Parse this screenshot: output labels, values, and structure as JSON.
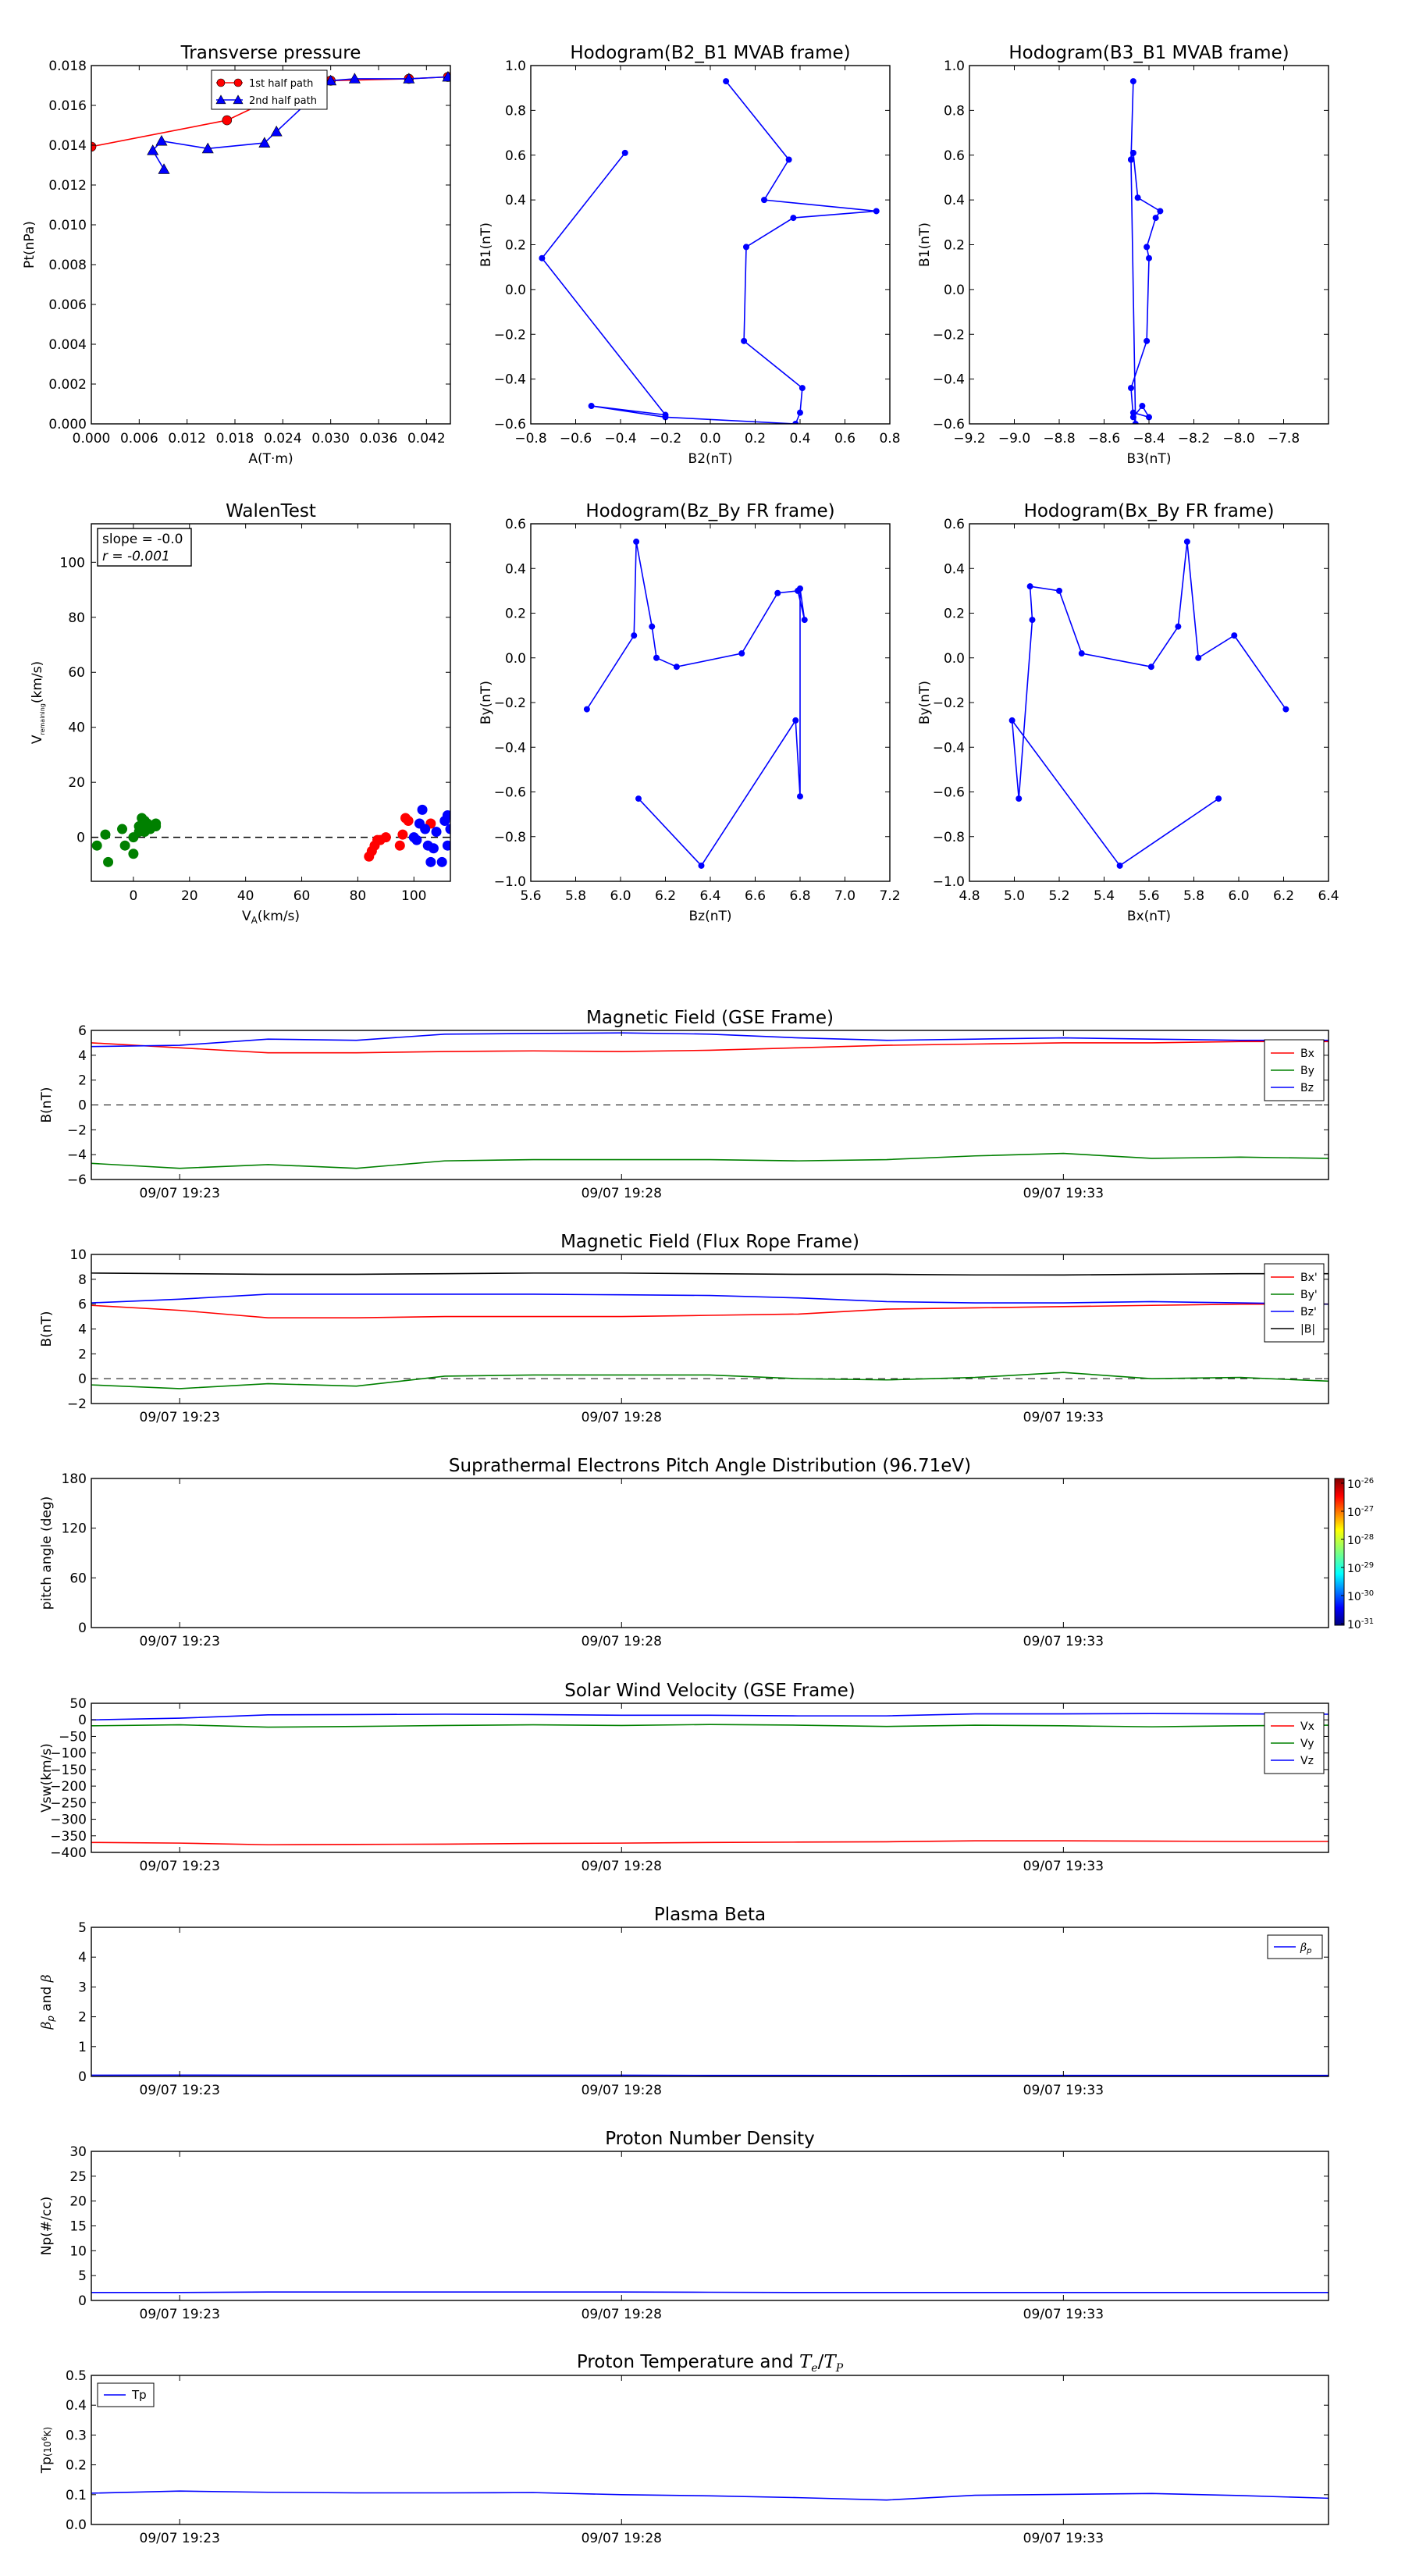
{
  "chart_data": [
    {
      "id": "tp",
      "type": "scatter",
      "title": "Transverse pressure",
      "xlabel": "A(T·m)",
      "ylabel": "Pt(nPa)",
      "xlim": [
        0,
        0.045
      ],
      "ylim": [
        0,
        0.019
      ],
      "xticks": [
        "0.000",
        "0.006",
        "0.012",
        "0.018",
        "0.024",
        "0.030",
        "0.036",
        "0.042"
      ],
      "yticks": [
        "0.000",
        "0.002",
        "0.004",
        "0.006",
        "0.008",
        "0.010",
        "0.012",
        "0.014",
        "0.016",
        "0.018"
      ],
      "legend": {
        "position": "top-right",
        "entries": [
          "1st half path",
          "2nd half path"
        ]
      },
      "series": [
        {
          "name": "1st half path",
          "color": "#ff0000",
          "marker": "circle",
          "x": [
            0.0,
            0.017,
            0.0225,
            0.03,
            0.0398,
            0.0447
          ],
          "y": [
            0.0147,
            0.0161,
            0.0172,
            0.0182,
            0.0183,
            0.0184
          ]
        },
        {
          "name": "2nd half path",
          "color": "#0000ff",
          "marker": "triangle",
          "x": [
            0.0447,
            0.0398,
            0.033,
            0.03,
            0.0232,
            0.0217,
            0.0146,
            0.0088,
            0.0077,
            0.0091
          ],
          "y": [
            0.0184,
            0.0183,
            0.0183,
            0.0182,
            0.0155,
            0.0149,
            0.0146,
            0.015,
            0.0145,
            0.0135
          ]
        }
      ]
    },
    {
      "id": "h1",
      "type": "line",
      "title": "Hodogram(B2_B1 MVAB frame)",
      "xlabel": "B2(nT)",
      "ylabel": "B1(nT)",
      "xlim": [
        -0.8,
        0.8
      ],
      "ylim": [
        -0.6,
        1.0
      ],
      "xticks": [
        "−0.8",
        "−0.6",
        "−0.4",
        "−0.2",
        "0.0",
        "0.2",
        "0.4",
        "0.6",
        "0.8"
      ],
      "yticks": [
        "−0.6",
        "−0.4",
        "−0.2",
        "0.0",
        "0.2",
        "0.4",
        "0.6",
        "0.8",
        "1.0"
      ],
      "series": [
        {
          "color": "#0000ff",
          "marker": "dot",
          "x": [
            -0.38,
            -0.75,
            -0.2,
            -0.53,
            -0.2,
            0.38,
            0.4,
            0.41,
            0.15,
            0.16,
            0.37,
            0.74,
            0.24,
            0.35,
            0.07
          ],
          "y": [
            0.61,
            0.14,
            -0.56,
            -0.52,
            -0.57,
            -0.6,
            -0.55,
            -0.44,
            -0.23,
            0.19,
            0.32,
            0.35,
            0.4,
            0.58,
            0.93
          ]
        }
      ]
    },
    {
      "id": "h2",
      "type": "line",
      "title": "Hodogram(B3_B1 MVAB frame)",
      "xlabel": "B3(nT)",
      "ylabel": "B1(nT)",
      "xlim": [
        -9.2,
        -7.6
      ],
      "ylim": [
        -0.6,
        1.0
      ],
      "xticks": [
        "−9.2",
        "−9.0",
        "−8.8",
        "−8.6",
        "−8.4",
        "−8.2",
        "−8.0",
        "−7.8"
      ],
      "yticks": [
        "−0.6",
        "−0.4",
        "−0.2",
        "0.0",
        "0.2",
        "0.4",
        "0.6",
        "0.8",
        "1.0"
      ],
      "series": [
        {
          "color": "#0000ff",
          "marker": "dot",
          "x": [
            -8.47,
            -8.48,
            -8.47,
            -8.45,
            -8.35,
            -8.37,
            -8.41,
            -8.4,
            -8.41,
            -8.48,
            -8.47,
            -8.43,
            -8.4,
            -8.47,
            -8.46,
            -8.48
          ],
          "y": [
            0.93,
            0.58,
            0.61,
            0.41,
            0.35,
            0.32,
            0.19,
            0.14,
            -0.23,
            -0.44,
            -0.57,
            -0.52,
            -0.57,
            -0.55,
            -0.6,
            0.58
          ]
        }
      ]
    },
    {
      "id": "walen",
      "type": "scatter",
      "title": "WalenTest",
      "xlabel": "V",
      "xlabel_sub": "A",
      "xlabel_unit": "(km/s)",
      "ylabel": "V",
      "ylabel_sub": "remaining",
      "ylabel_unit": "(km/s)",
      "xlim": [
        -15,
        113
      ],
      "ylim": [
        -16,
        114
      ],
      "xticks": [
        0,
        20,
        40,
        60,
        80,
        100
      ],
      "yticks": [
        0,
        20,
        40,
        60,
        80,
        100
      ],
      "annotation": [
        "slope = -0.0",
        "r = -0.001"
      ],
      "fit_line": {
        "slope": -0.0,
        "intercept": 0
      },
      "series": [
        {
          "color": "#008000",
          "x": [
            -13,
            -10,
            -9,
            -4,
            -3,
            0,
            0,
            2,
            2,
            3,
            4,
            4,
            5,
            6,
            8,
            8
          ],
          "y": [
            -3,
            1,
            -9,
            3,
            -3,
            0,
            -6,
            2,
            4,
            7,
            6,
            2,
            5,
            3,
            4,
            5
          ]
        },
        {
          "color": "#ff0000",
          "x": [
            84,
            85,
            86,
            87,
            88,
            90,
            95,
            96,
            97,
            98,
            106
          ],
          "y": [
            -7,
            -5,
            -3,
            -1,
            -1,
            0,
            -3,
            1,
            7,
            6,
            5
          ]
        },
        {
          "color": "#0000ff",
          "x": [
            100,
            101,
            102,
            103,
            104,
            105,
            106,
            107,
            108,
            110,
            111,
            112,
            112,
            113
          ],
          "y": [
            0,
            -1,
            5,
            10,
            3,
            -3,
            -9,
            -4,
            2,
            -9,
            6,
            -3,
            8,
            3
          ]
        }
      ]
    },
    {
      "id": "h3",
      "type": "line",
      "title": "Hodogram(Bz_By FR frame)",
      "xlabel": "Bz(nT)",
      "ylabel": "By(nT)",
      "xlim": [
        5.6,
        7.2
      ],
      "ylim": [
        -1.0,
        0.6
      ],
      "xticks": [
        "5.6",
        "5.8",
        "6.0",
        "6.2",
        "6.4",
        "6.6",
        "6.8",
        "7.0",
        "7.2"
      ],
      "yticks": [
        "−1.0",
        "−0.8",
        "−0.6",
        "−0.4",
        "−0.2",
        "0.0",
        "0.2",
        "0.4",
        "0.6"
      ],
      "series": [
        {
          "color": "#0000ff",
          "marker": "dot",
          "x": [
            6.08,
            6.36,
            6.78,
            6.8,
            6.8,
            6.82,
            6.79,
            6.7,
            6.54,
            6.25,
            6.16,
            6.14,
            6.07,
            6.06,
            5.85
          ],
          "y": [
            -0.63,
            -0.93,
            -0.28,
            -0.62,
            0.31,
            0.17,
            0.3,
            0.29,
            0.02,
            -0.04,
            0.0,
            0.14,
            0.52,
            0.1,
            -0.23
          ]
        }
      ]
    },
    {
      "id": "h4",
      "type": "line",
      "title": "Hodogram(Bx_By FR frame)",
      "xlabel": "Bx(nT)",
      "ylabel": "By(nT)",
      "xlim": [
        4.8,
        6.4
      ],
      "ylim": [
        -1.0,
        0.6
      ],
      "xticks": [
        "4.8",
        "5.0",
        "5.2",
        "5.4",
        "5.6",
        "5.8",
        "6.0",
        "6.2",
        "6.4"
      ],
      "yticks": [
        "−1.0",
        "−0.8",
        "−0.6",
        "−0.4",
        "−0.2",
        "0.0",
        "0.2",
        "0.4",
        "0.6"
      ],
      "series": [
        {
          "color": "#0000ff",
          "marker": "dot",
          "x": [
            5.91,
            5.47,
            4.99,
            5.02,
            5.08,
            5.07,
            5.2,
            5.3,
            5.61,
            5.73,
            5.77,
            5.82,
            5.98,
            6.21
          ],
          "y": [
            -0.63,
            -0.93,
            -0.28,
            -0.63,
            0.17,
            0.32,
            0.3,
            0.02,
            -0.04,
            0.14,
            0.52,
            0.0,
            0.1,
            -0.23
          ]
        }
      ]
    },
    {
      "id": "ts1",
      "type": "line",
      "title": "Magnetic Field (GSE Frame)",
      "ylabel": "B(nT)",
      "ylim": [
        -6,
        6
      ],
      "yticks": [
        "−6",
        "−4",
        "−2",
        "0",
        "2",
        "4",
        "6"
      ],
      "x": [
        0,
        1,
        2,
        3,
        4,
        5,
        6,
        7,
        8,
        9,
        10,
        11,
        12,
        13,
        14
      ],
      "xticks": [
        "09/07 19:23",
        "09/07 19:28",
        "09/07 19:33"
      ],
      "xtick_pos": [
        1,
        6,
        11
      ],
      "zero_line": true,
      "legend": {
        "position": "right"
      },
      "series": [
        {
          "name": "Bx",
          "color": "#ff0000",
          "values": [
            5.0,
            4.6,
            4.2,
            4.2,
            4.3,
            4.35,
            4.3,
            4.4,
            4.6,
            4.8,
            4.9,
            5.0,
            5.0,
            5.1,
            5.1
          ]
        },
        {
          "name": "By",
          "color": "#008000",
          "values": [
            -4.7,
            -5.1,
            -4.8,
            -5.1,
            -4.5,
            -4.4,
            -4.4,
            -4.4,
            -4.5,
            -4.4,
            -4.1,
            -3.9,
            -4.3,
            -4.2,
            -4.3
          ]
        },
        {
          "name": "Bz",
          "color": "#0000ff",
          "values": [
            4.7,
            4.8,
            5.3,
            5.2,
            5.7,
            5.75,
            5.8,
            5.7,
            5.4,
            5.2,
            5.3,
            5.4,
            5.3,
            5.2,
            5.2
          ]
        }
      ]
    },
    {
      "id": "ts2",
      "type": "line",
      "title": "Magnetic Field (Flux Rope Frame)",
      "ylabel": "B(nT)",
      "ylim": [
        -2,
        10
      ],
      "yticks": [
        "−2",
        "0",
        "2",
        "4",
        "6",
        "8",
        "10"
      ],
      "x": [
        0,
        1,
        2,
        3,
        4,
        5,
        6,
        7,
        8,
        9,
        10,
        11,
        12,
        13,
        14
      ],
      "xticks": [
        "09/07 19:23",
        "09/07 19:28",
        "09/07 19:33"
      ],
      "xtick_pos": [
        1,
        6,
        11
      ],
      "zero_line": true,
      "legend": {
        "position": "right"
      },
      "series": [
        {
          "name": "Bx'",
          "color": "#ff0000",
          "values": [
            5.9,
            5.5,
            4.9,
            4.9,
            5.0,
            5.0,
            5.0,
            5.1,
            5.2,
            5.6,
            5.7,
            5.8,
            5.9,
            6.0,
            6.0
          ]
        },
        {
          "name": "By'",
          "color": "#008000",
          "values": [
            -0.5,
            -0.8,
            -0.4,
            -0.6,
            0.2,
            0.3,
            0.3,
            0.3,
            0.0,
            -0.1,
            0.1,
            0.5,
            0.0,
            0.1,
            -0.2
          ]
        },
        {
          "name": "Bz'",
          "color": "#0000ff",
          "values": [
            6.1,
            6.4,
            6.8,
            6.8,
            6.8,
            6.8,
            6.75,
            6.7,
            6.5,
            6.2,
            6.1,
            6.1,
            6.2,
            6.1,
            6.0
          ]
        },
        {
          "name": "|B|",
          "color": "#000000",
          "values": [
            8.5,
            8.45,
            8.4,
            8.4,
            8.45,
            8.5,
            8.5,
            8.45,
            8.4,
            8.4,
            8.35,
            8.35,
            8.4,
            8.45,
            8.45
          ]
        }
      ]
    },
    {
      "id": "ts3",
      "type": "heatmap",
      "title": "Suprathermal Electrons Pitch Angle Distribution (96.71eV)",
      "ylabel": "pitch angle (deg)",
      "ylim": [
        0,
        180
      ],
      "yticks": [
        "0",
        "60",
        "120",
        "180"
      ],
      "x": [
        0,
        14
      ],
      "xticks": [
        "09/07 19:23",
        "09/07 19:28",
        "09/07 19:33"
      ],
      "xtick_pos": [
        1,
        6,
        11
      ],
      "colorbar": {
        "ticks": [
          {
            "base": "10",
            "exp": "-26"
          },
          {
            "base": "10",
            "exp": "-27"
          },
          {
            "base": "10",
            "exp": "-28"
          },
          {
            "base": "10",
            "exp": "-29"
          },
          {
            "base": "10",
            "exp": "-30"
          },
          {
            "base": "10",
            "exp": "-31"
          }
        ]
      }
    },
    {
      "id": "ts4",
      "type": "line",
      "title": "Solar Wind Velocity (GSE Frame)",
      "ylabel": "Vsw(km/s)",
      "ylim": [
        -400,
        50
      ],
      "yticks": [
        "−400",
        "−350",
        "−300",
        "−250",
        "−200",
        "−150",
        "−100",
        "−50",
        "0",
        "50"
      ],
      "x": [
        0,
        1,
        2,
        3,
        4,
        5,
        6,
        7,
        8,
        9,
        10,
        11,
        12,
        13,
        14
      ],
      "xticks": [
        "09/07 19:23",
        "09/07 19:28",
        "09/07 19:33"
      ],
      "xtick_pos": [
        1,
        6,
        11
      ],
      "legend": {
        "position": "right"
      },
      "series": [
        {
          "name": "Vx",
          "color": "#ff0000",
          "values": [
            -370,
            -372,
            -377,
            -376,
            -375,
            -373,
            -372,
            -370,
            -369,
            -368,
            -365,
            -365,
            -366,
            -367,
            -367
          ]
        },
        {
          "name": "Vy",
          "color": "#008000",
          "values": [
            -18,
            -15,
            -22,
            -20,
            -17,
            -15,
            -17,
            -14,
            -16,
            -20,
            -16,
            -18,
            -21,
            -18,
            -16
          ]
        },
        {
          "name": "Vz",
          "color": "#0000ff",
          "values": [
            0,
            5,
            15,
            16,
            17,
            16,
            14,
            14,
            12,
            12,
            18,
            18,
            19,
            18,
            17
          ]
        }
      ]
    },
    {
      "id": "ts5",
      "type": "line",
      "title": "Plasma Beta",
      "ylabel_base": "β",
      "ylabel_sub": "p",
      "ylabel_mid": " and ",
      "ylabel_end": "β",
      "ylim": [
        0,
        5
      ],
      "yticks": [
        "0",
        "1",
        "2",
        "3",
        "4",
        "5"
      ],
      "x": [
        0,
        1,
        2,
        3,
        4,
        5,
        6,
        7,
        8,
        9,
        10,
        11,
        12,
        13,
        14
      ],
      "xticks": [
        "09/07 19:23",
        "09/07 19:28",
        "09/07 19:33"
      ],
      "xtick_pos": [
        1,
        6,
        11
      ],
      "legend": {
        "position": "top-right",
        "label_base": "β",
        "label_sub": "p"
      },
      "series": [
        {
          "name": "βp",
          "color": "#0000ff",
          "values": [
            0.04,
            0.045,
            0.04,
            0.04,
            0.04,
            0.04,
            0.04,
            0.035,
            0.035,
            0.03,
            0.035,
            0.035,
            0.035,
            0.035,
            0.035
          ]
        }
      ]
    },
    {
      "id": "ts6",
      "type": "line",
      "title": "Proton Number Density",
      "ylabel": "Np(#/cc)",
      "ylim": [
        0,
        30
      ],
      "yticks": [
        "0",
        "5",
        "10",
        "15",
        "20",
        "25",
        "30"
      ],
      "x": [
        0,
        1,
        2,
        3,
        4,
        5,
        6,
        7,
        8,
        9,
        10,
        11,
        12,
        13,
        14
      ],
      "xticks": [
        "09/07 19:23",
        "09/07 19:28",
        "09/07 19:33"
      ],
      "xtick_pos": [
        1,
        6,
        11
      ],
      "series": [
        {
          "name": "Np",
          "color": "#0000ff",
          "values": [
            1.6,
            1.6,
            1.7,
            1.7,
            1.7,
            1.7,
            1.7,
            1.65,
            1.6,
            1.6,
            1.6,
            1.6,
            1.6,
            1.6,
            1.6
          ]
        }
      ]
    },
    {
      "id": "ts7",
      "type": "line",
      "title_base": "Proton Temperature and ",
      "title_t1": "T",
      "title_s1": "e",
      "title_slash": "/",
      "title_t2": "T",
      "title_s2": "P",
      "ylabel_base": "Tp",
      "ylabel_paren": "(10",
      "ylabel_sup": "6",
      "ylabel_tail": "K)",
      "ylim": [
        0,
        0.5
      ],
      "yticks": [
        "0.0",
        "0.1",
        "0.2",
        "0.3",
        "0.4",
        "0.5"
      ],
      "x": [
        0,
        1,
        2,
        3,
        4,
        5,
        6,
        7,
        8,
        9,
        10,
        11,
        12,
        13,
        14
      ],
      "xticks": [
        "09/07 19:23",
        "09/07 19:28",
        "09/07 19:33"
      ],
      "xtick_pos": [
        1,
        6,
        11
      ],
      "legend": {
        "position": "top-left"
      },
      "series": [
        {
          "name": "Tp",
          "color": "#0000ff",
          "values": [
            0.105,
            0.112,
            0.108,
            0.106,
            0.106,
            0.107,
            0.1,
            0.096,
            0.09,
            0.082,
            0.098,
            0.101,
            0.104,
            0.097,
            0.088
          ]
        }
      ]
    }
  ]
}
